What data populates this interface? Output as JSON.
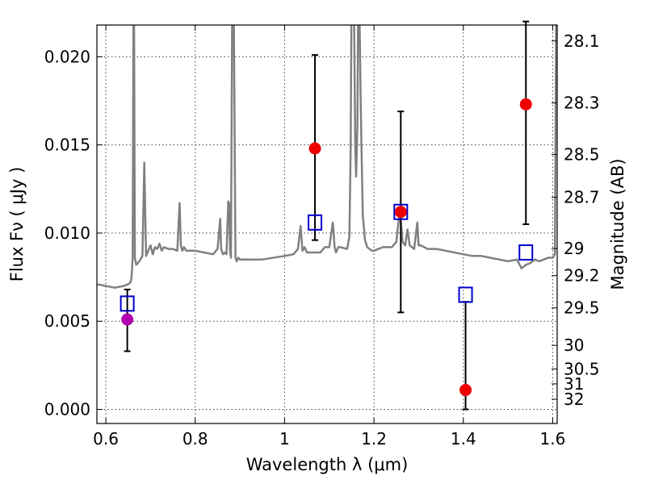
{
  "chart_data": {
    "type": "scatter",
    "xlabel": "Wavelength  λ (μm)",
    "ylabel": "Flux  Fν  ( μJy )",
    "ylabel_right": "Magnitude (AB)",
    "xlim": [
      0.58,
      1.61
    ],
    "ylim": [
      -0.0008,
      0.0218
    ],
    "x_ticks": [
      0.6,
      0.8,
      1.0,
      1.2,
      1.4,
      1.6
    ],
    "x_tick_labels": [
      "0.6",
      "0.8",
      "1",
      "1.2",
      "1.4",
      "1.6"
    ],
    "y_ticks": [
      0.0,
      0.005,
      0.01,
      0.015,
      0.02
    ],
    "y_tick_labels": [
      "0.000",
      "0.005",
      "0.010",
      "0.015",
      "0.020"
    ],
    "mag_ticks": [
      28.1,
      28.3,
      28.5,
      28.7,
      29,
      29.2,
      29.5,
      30,
      30.5,
      31,
      32
    ],
    "mag_tick_labels": [
      "28.1",
      "28.3",
      "28.5",
      "28.7",
      "29",
      "29.2",
      "29.5",
      "30",
      "30.5",
      "31",
      "32"
    ],
    "grid": true,
    "observed_points": [
      {
        "x": 0.648,
        "y": 0.0051,
        "yerr_low": 0.0018,
        "yerr_high": 0.0017,
        "color": "#b000b0"
      },
      {
        "x": 1.068,
        "y": 0.0148,
        "yerr_low": 0.0052,
        "yerr_high": 0.0053,
        "color": "#ee0000"
      },
      {
        "x": 1.26,
        "y": 0.0112,
        "yerr_low": 0.0057,
        "yerr_high": 0.0057,
        "color": "#ee0000"
      },
      {
        "x": 1.405,
        "y": 0.0011,
        "yerr_low": 0.0011,
        "yerr_high": 0.005,
        "color": "#ee0000"
      },
      {
        "x": 1.54,
        "y": 0.0173,
        "yerr_low": 0.0068,
        "yerr_high": 0.0047,
        "color": "#ee0000"
      }
    ],
    "model_points": {
      "color": "#0000cc",
      "points": [
        {
          "x": 0.648,
          "y": 0.006
        },
        {
          "x": 1.068,
          "y": 0.0106
        },
        {
          "x": 1.26,
          "y": 0.0112
        },
        {
          "x": 1.405,
          "y": 0.0065
        },
        {
          "x": 1.54,
          "y": 0.0089
        }
      ]
    },
    "sed_model": {
      "color": "#808080",
      "x": [
        0.58,
        0.6,
        0.62,
        0.64,
        0.65,
        0.655,
        0.657,
        0.658,
        0.66,
        0.662,
        0.663,
        0.665,
        0.668,
        0.675,
        0.682,
        0.686,
        0.69,
        0.7,
        0.705,
        0.71,
        0.715,
        0.72,
        0.725,
        0.73,
        0.74,
        0.75,
        0.76,
        0.765,
        0.768,
        0.771,
        0.775,
        0.78,
        0.79,
        0.8,
        0.82,
        0.84,
        0.85,
        0.856,
        0.858,
        0.862,
        0.866,
        0.87,
        0.874,
        0.876,
        0.878,
        0.88,
        0.883,
        0.886,
        0.89,
        0.893,
        0.896,
        0.9,
        0.95,
        1.0,
        1.02,
        1.03,
        1.036,
        1.04,
        1.045,
        1.05,
        1.08,
        1.09,
        1.1,
        1.108,
        1.112,
        1.115,
        1.12,
        1.125,
        1.14,
        1.145,
        1.148,
        1.15,
        1.155,
        1.158,
        1.16,
        1.163,
        1.165,
        1.167,
        1.17,
        1.172,
        1.175,
        1.18,
        1.185,
        1.195,
        1.2,
        1.22,
        1.24,
        1.25,
        1.258,
        1.264,
        1.27,
        1.275,
        1.28,
        1.29,
        1.297,
        1.3,
        1.305,
        1.32,
        1.34,
        1.36,
        1.38,
        1.4,
        1.42,
        1.44,
        1.46,
        1.48,
        1.5,
        1.52,
        1.53,
        1.54,
        1.55,
        1.56,
        1.57,
        1.58,
        1.59,
        1.6,
        1.605,
        1.608,
        1.61
      ],
      "y": [
        0.0071,
        0.007,
        0.0069,
        0.007,
        0.0071,
        0.0072,
        0.0074,
        0.0077,
        0.0086,
        0.024,
        0.024,
        0.0086,
        0.0082,
        0.0084,
        0.0087,
        0.014,
        0.0087,
        0.0093,
        0.0088,
        0.0092,
        0.0091,
        0.0094,
        0.009,
        0.0092,
        0.0091,
        0.0091,
        0.009,
        0.0117,
        0.0093,
        0.009,
        0.0092,
        0.009,
        0.009,
        0.009,
        0.0089,
        0.0088,
        0.0091,
        0.0108,
        0.0091,
        0.0088,
        0.0089,
        0.0088,
        0.0118,
        0.0117,
        0.009,
        0.0086,
        0.024,
        0.024,
        0.0086,
        0.0084,
        0.0086,
        0.0085,
        0.0085,
        0.0087,
        0.0088,
        0.0091,
        0.0104,
        0.009,
        0.0092,
        0.0089,
        0.0089,
        0.0092,
        0.0092,
        0.0106,
        0.0092,
        0.0089,
        0.0092,
        0.0092,
        0.0091,
        0.0098,
        0.015,
        0.024,
        0.024,
        0.015,
        0.0132,
        0.016,
        0.024,
        0.024,
        0.018,
        0.015,
        0.011,
        0.0096,
        0.0092,
        0.009,
        0.009,
        0.0092,
        0.0092,
        0.0095,
        0.0113,
        0.0095,
        0.0093,
        0.0102,
        0.0093,
        0.0091,
        0.0106,
        0.0093,
        0.0093,
        0.0091,
        0.0091,
        0.009,
        0.0089,
        0.0088,
        0.0087,
        0.0087,
        0.0086,
        0.0085,
        0.0084,
        0.0085,
        0.008,
        0.0082,
        0.0083,
        0.0085,
        0.0084,
        0.0085,
        0.0086,
        0.0086,
        0.0088,
        0.024,
        0.024
      ]
    }
  }
}
